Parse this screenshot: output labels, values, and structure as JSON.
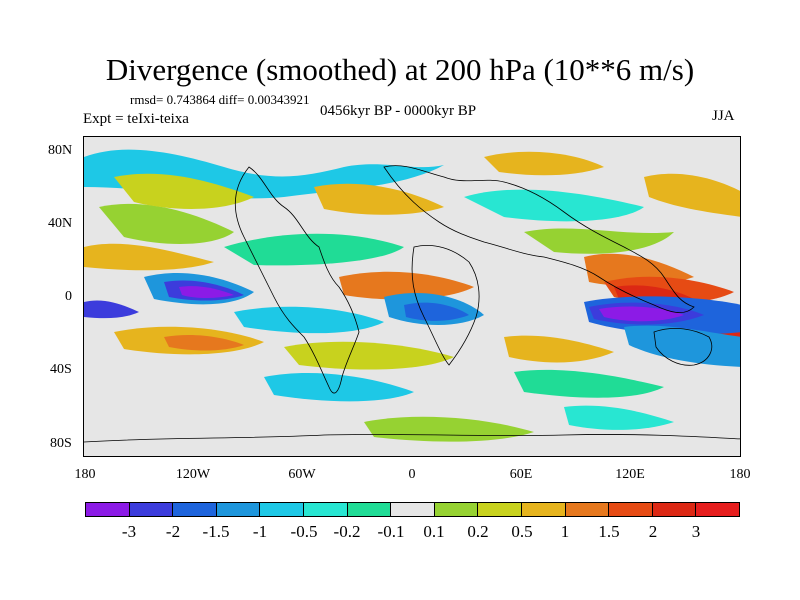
{
  "title": "Divergence (smoothed) at 200 hPa (10**6 m/s)",
  "stats": "rmsd= 0.743864 diff= 0.00343921",
  "experiment": "Expt = teIxi-teixa",
  "period": "0456kyr BP - 0000kyr BP",
  "season": "JJA",
  "axes": {
    "y_ticks": [
      "80N",
      "40N",
      "0",
      "40S",
      "80S"
    ],
    "x_ticks": [
      "180",
      "120W",
      "60W",
      "0",
      "60E",
      "120E",
      "180"
    ]
  },
  "colorbar": {
    "labels": [
      "-3",
      "-2",
      "-1.5",
      "-1",
      "-0.5",
      "-0.2",
      "-0.1",
      "0.1",
      "0.2",
      "0.5",
      "1",
      "1.5",
      "2",
      "3"
    ],
    "colors": [
      "#8c1be6",
      "#3c3cdc",
      "#1e64dc",
      "#1e96dc",
      "#1ec8e6",
      "#28e6d2",
      "#20dc96",
      "#e6e6e6",
      "#96d232",
      "#c8d21e",
      "#e6b41e",
      "#e6781e",
      "#e64b14",
      "#dc2814",
      "#e61e1e"
    ]
  }
}
